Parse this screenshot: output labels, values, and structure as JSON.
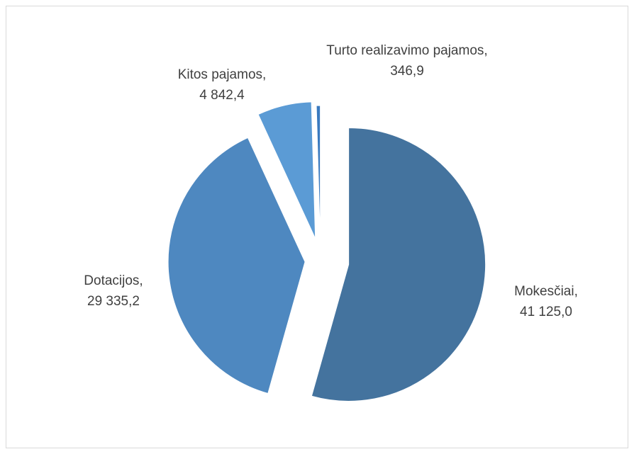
{
  "chart_data": {
    "type": "pie",
    "categories": [
      "Mokesčiai,",
      "Dotacijos,",
      "Kitos pajamos,",
      "Turto realizavimo pajamos,"
    ],
    "values": [
      41125.0,
      29335.2,
      4842.4,
      346.9
    ],
    "value_labels": [
      "41 125,0",
      "29 335,2",
      "4 842,4",
      "346,9"
    ],
    "colors": [
      "#44739e",
      "#4e88c0",
      "#5b9bd5",
      "#3a7abf"
    ]
  }
}
